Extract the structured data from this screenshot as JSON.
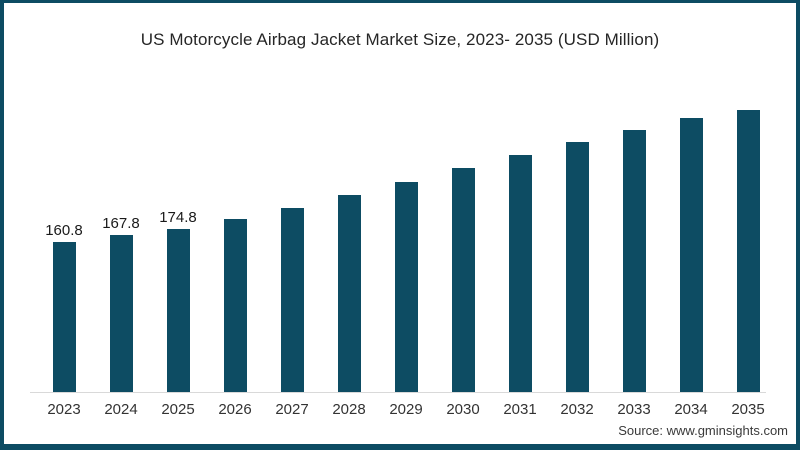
{
  "chart_data": {
    "type": "bar",
    "title": "US Motorcycle Airbag Jacket Market Size, 2023- 2035 (USD Million)",
    "xlabel": "",
    "ylabel": "",
    "categories": [
      "2023",
      "2024",
      "2025",
      "2026",
      "2027",
      "2028",
      "2029",
      "2030",
      "2031",
      "2032",
      "2033",
      "2034",
      "2035"
    ],
    "values": [
      160.8,
      167.8,
      174.8,
      185.0,
      196.8,
      211.6,
      225.5,
      240.4,
      254.3,
      268.2,
      281.0,
      293.9,
      302.4
    ],
    "data_labels": [
      "160.8",
      "167.8",
      "174.8",
      "",
      "",
      "",
      "",
      "",
      "",
      "",
      "",
      "",
      ""
    ],
    "ylim": [
      0,
      418
    ],
    "grid": false,
    "legend": false,
    "bar_color": "#0d4c63",
    "axis_line_color": "#d9d9d9"
  },
  "frame": {
    "border_color": "#0d4c63"
  },
  "footer": {
    "source": "Source: www.gminsights.com"
  }
}
